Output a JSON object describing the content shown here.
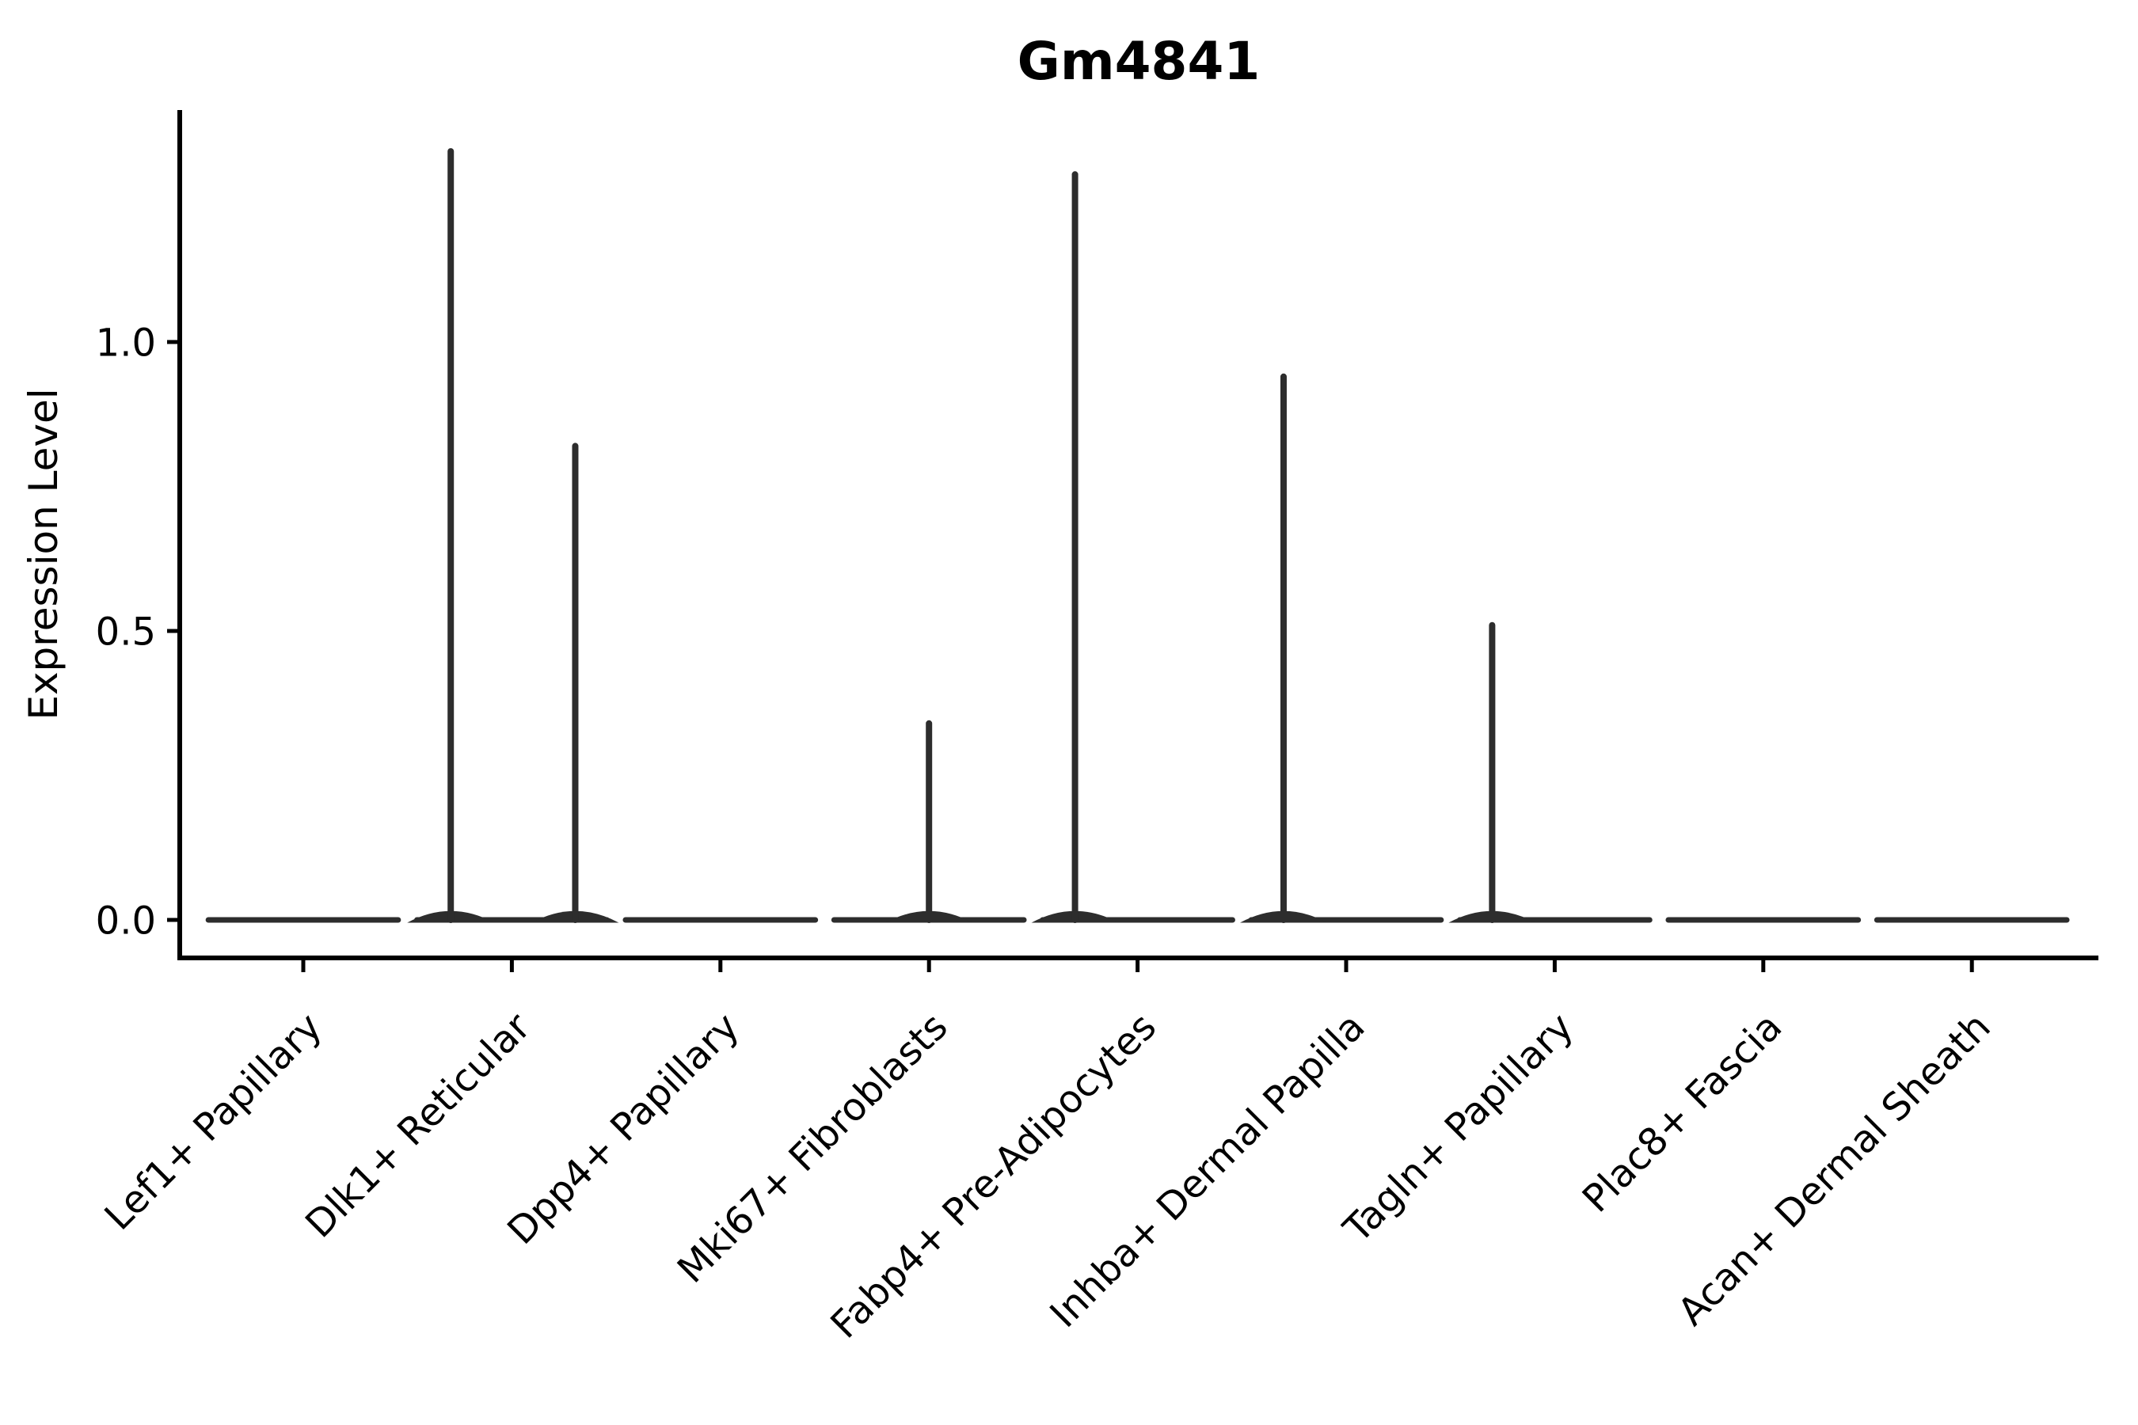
{
  "figure": {
    "background_color": "#ffffff",
    "axis_color": "#000000",
    "violin_color": "#2d2d2d"
  },
  "chart_data": {
    "type": "violin",
    "title": "Gm4841",
    "xlabel": "",
    "ylabel": "Expression Level",
    "ylim": [
      -0.07,
      1.4
    ],
    "yticks": [
      {
        "value": 0.0,
        "label": "0.0"
      },
      {
        "value": 0.5,
        "label": "0.5"
      },
      {
        "value": 1.0,
        "label": "1.0"
      }
    ],
    "grid": false,
    "legend": "none",
    "categories": [
      "Lef1+ Papillary",
      "Dlk1+ Reticular",
      "Dpp4+ Papillary",
      "Mki67+ Fibroblasts",
      "Fabp4+ Pre-Adipocytes",
      "Inhba+ Dermal Papilla",
      "Tagln+ Papillary",
      "Plac8+ Fascia",
      "Acan+ Dermal Sheath"
    ],
    "violins": [
      {
        "category": "Lef1+ Papillary",
        "baseline_value": 0.0,
        "base_halfwidth_frac": 0.455,
        "spikes": []
      },
      {
        "category": "Dlk1+ Reticular",
        "baseline_value": 0.0,
        "base_halfwidth_frac": 0.455,
        "spikes": [
          {
            "offset_frac": -0.293,
            "value": 1.33
          },
          {
            "offset_frac": 0.304,
            "value": 0.82
          }
        ]
      },
      {
        "category": "Dpp4+ Papillary",
        "baseline_value": 0.0,
        "base_halfwidth_frac": 0.455,
        "spikes": []
      },
      {
        "category": "Mki67+ Fibroblasts",
        "baseline_value": 0.0,
        "base_halfwidth_frac": 0.455,
        "spikes": [
          {
            "offset_frac": 0.0,
            "value": 0.34
          }
        ]
      },
      {
        "category": "Fabp4+ Pre-Adipocytes",
        "baseline_value": 0.0,
        "base_halfwidth_frac": 0.455,
        "spikes": [
          {
            "offset_frac": -0.3,
            "value": 1.29
          }
        ]
      },
      {
        "category": "Inhba+ Dermal Papilla",
        "baseline_value": 0.0,
        "base_halfwidth_frac": 0.455,
        "spikes": [
          {
            "offset_frac": -0.3,
            "value": 0.94
          }
        ]
      },
      {
        "category": "Tagln+ Papillary",
        "baseline_value": 0.0,
        "base_halfwidth_frac": 0.455,
        "spikes": [
          {
            "offset_frac": -0.3,
            "value": 0.51
          }
        ]
      },
      {
        "category": "Plac8+ Fascia",
        "baseline_value": 0.0,
        "base_halfwidth_frac": 0.455,
        "spikes": []
      },
      {
        "category": "Acan+ Dermal Sheath",
        "baseline_value": 0.0,
        "base_halfwidth_frac": 0.455,
        "spikes": []
      }
    ]
  }
}
